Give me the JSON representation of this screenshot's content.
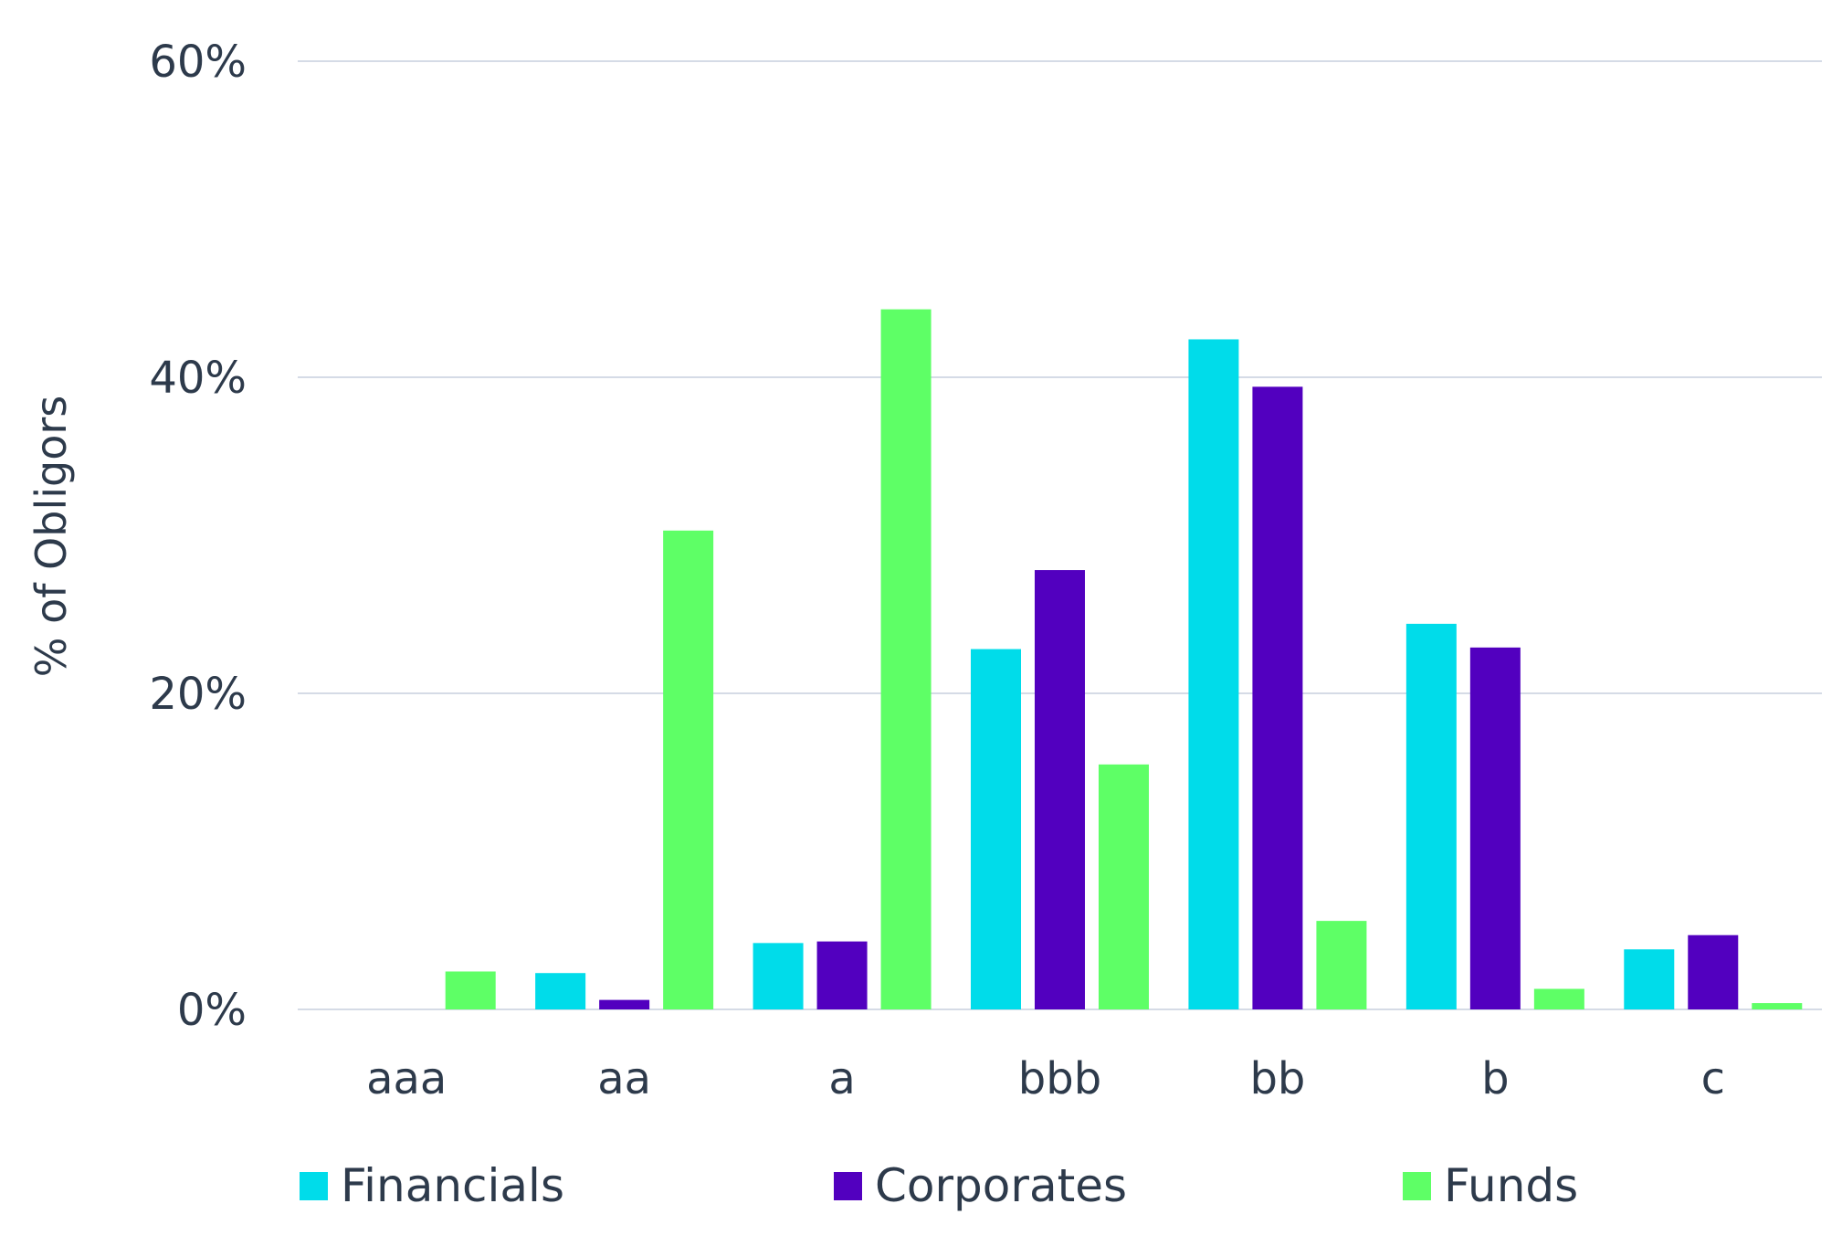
{
  "chart_data": {
    "type": "bar",
    "title": "",
    "xlabel": "",
    "ylabel": "% of Obligors",
    "ylim": [
      0,
      60
    ],
    "y_ticks": [
      "0%",
      "20%",
      "40%",
      "60%"
    ],
    "y_tick_values": [
      0,
      20,
      40,
      60
    ],
    "grid": true,
    "legend_position": "bottom",
    "categories": [
      "aaa",
      "aa",
      "a",
      "bbb",
      "bb",
      "b",
      "c"
    ],
    "series": [
      {
        "name": "Financials",
        "color": "#00dcea",
        "values": [
          0,
          2.3,
          4.2,
          22.8,
          42.4,
          24.4,
          3.8
        ]
      },
      {
        "name": "Corporates",
        "color": "#5200bf",
        "values": [
          0,
          0.6,
          4.3,
          27.8,
          39.4,
          22.9,
          4.7
        ]
      },
      {
        "name": "Funds",
        "color": "#5eff66",
        "values": [
          2.4,
          30.3,
          44.3,
          15.5,
          5.6,
          1.3,
          0.4
        ]
      }
    ]
  },
  "colors": {
    "grid": "#d5dbe6",
    "text": "#2d3a4b"
  }
}
